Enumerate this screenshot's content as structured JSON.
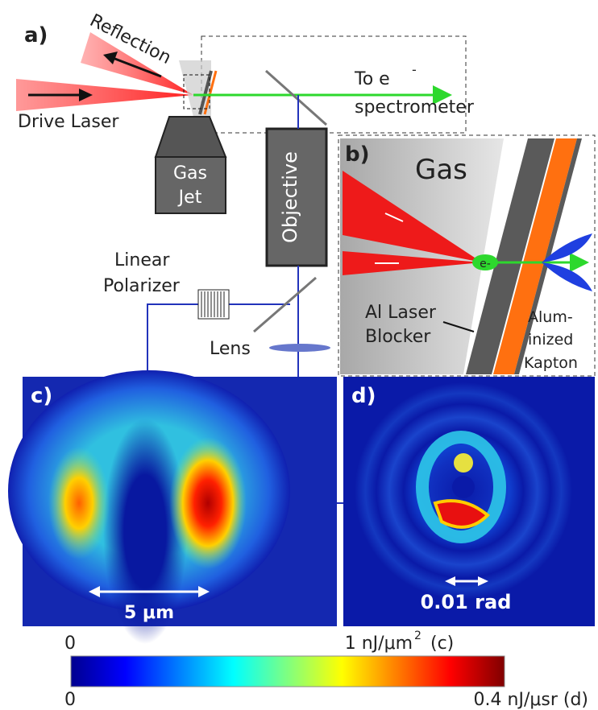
{
  "panels": {
    "a": {
      "label": "a)",
      "reflection": "Reflection",
      "drive_laser": "Drive Laser",
      "gas_jet": [
        "Gas",
        "Jet"
      ],
      "to_e": "To e",
      "to_e_sup": "-",
      "spectrometer": "spectrometer",
      "objective": "Objective",
      "linear_polarizer": [
        "Linear",
        "Polarizer"
      ],
      "lens": "Lens"
    },
    "b": {
      "label": "b)",
      "gas": "Gas",
      "electron": "e-",
      "al_laser_blocker": [
        "Al Laser",
        "Blocker"
      ],
      "aluminized_kapton": [
        "Alum-",
        "inized",
        "Kapton"
      ]
    },
    "c": {
      "label": "c)",
      "scale": "5 μm"
    },
    "d": {
      "label": "d)",
      "scale": "0.01 rad"
    }
  },
  "colorbar": {
    "top_min": "0",
    "top_max": "1 nJ/μm",
    "top_max_sup": "2",
    "top_max_suffix": "(c)",
    "bottom_min": "0",
    "bottom_max": "0.4 nJ/μsr (d)"
  }
}
